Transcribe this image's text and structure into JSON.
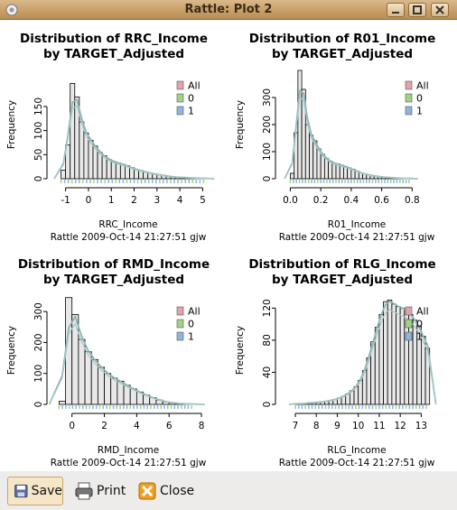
{
  "window": {
    "title": "Rattle: Plot 2"
  },
  "toolbar": {
    "save_label": "Save",
    "print_label": "Print",
    "close_label": "Close"
  },
  "colors": {
    "all": "#e6a0b0",
    "zero": "#9fd483",
    "one": "#8fb5dc",
    "bars": "#e8e8e8",
    "density": "#8fb5b5"
  },
  "chart_data": [
    {
      "type": "bar",
      "title": "Distribution of RRC_Income",
      "subtitle": "by TARGET_Adjusted",
      "xlabel": "RRC_Income",
      "ylabel": "Frequency",
      "caption": "Rattle 2009-Oct-14 21:27:51 gjw",
      "legend": [
        "All",
        "0",
        "1"
      ],
      "xlim": [
        -1.5,
        5.3
      ],
      "ylim": [
        0,
        225
      ],
      "xticks": [
        "-1",
        "0",
        "1",
        "2",
        "3",
        "4",
        "5"
      ],
      "yticks": [
        "0",
        "50",
        "100",
        "150"
      ],
      "bin_start": -1.2,
      "bin_width": 0.2,
      "values": [
        18,
        70,
        198,
        170,
        118,
        95,
        80,
        68,
        55,
        48,
        40,
        36,
        33,
        30,
        27,
        23,
        19,
        17,
        14,
        12,
        10,
        8,
        7,
        5,
        4,
        3,
        3,
        2,
        2,
        1,
        1,
        1
      ]
    },
    {
      "type": "bar",
      "title": "Distribution of R01_Income",
      "subtitle": "by TARGET_Adjusted",
      "xlabel": "R01_Income",
      "ylabel": "Frequency",
      "caption": "Rattle 2009-Oct-14 21:27:51 gjw",
      "legend": [
        "All",
        "0",
        "1"
      ],
      "xlim": [
        -0.05,
        0.97
      ],
      "ylim": [
        0,
        400
      ],
      "xticks": [
        "0.0",
        "0.2",
        "0.4",
        "0.6",
        "0.8"
      ],
      "yticks": [
        "0",
        "100",
        "200",
        "300"
      ],
      "bin_start": 0,
      "bin_width": 0.025,
      "values": [
        20,
        170,
        400,
        330,
        200,
        160,
        140,
        110,
        90,
        75,
        65,
        56,
        55,
        50,
        45,
        40,
        35,
        28,
        22,
        18,
        15,
        12,
        10,
        8,
        6,
        5,
        4,
        3,
        2,
        2,
        1,
        1
      ]
    },
    {
      "type": "bar",
      "title": "Distribution of RMD_Income",
      "subtitle": "by TARGET_Adjusted",
      "xlabel": "RMD_Income",
      "ylabel": "Frequency",
      "caption": "Rattle 2009-Oct-14 21:27:51 gjw",
      "legend": [
        "All",
        "0",
        "1"
      ],
      "xlim": [
        -1.1,
        8.5
      ],
      "ylim": [
        0,
        350
      ],
      "xticks": [
        "0",
        "2",
        "4",
        "6",
        "8"
      ],
      "yticks": [
        "0",
        "100",
        "200",
        "300"
      ],
      "bin_start": -0.8,
      "bin_width": 0.4,
      "values": [
        10,
        345,
        290,
        210,
        170,
        145,
        120,
        100,
        85,
        75,
        62,
        50,
        40,
        30,
        22,
        14,
        8,
        5,
        3,
        2,
        1
      ]
    },
    {
      "type": "bar",
      "title": "Distribution of RLG_Income",
      "subtitle": "by TARGET_Adjusted",
      "xlabel": "RLG_Income",
      "ylabel": "Frequency",
      "caption": "Rattle 2009-Oct-14 21:27:51 gjw",
      "legend": [
        "All",
        "0",
        "1"
      ],
      "xlim": [
        6.4,
        13.8
      ],
      "ylim": [
        0,
        135
      ],
      "xticks": [
        "7",
        "8",
        "9",
        "10",
        "11",
        "12",
        "13"
      ],
      "yticks": [
        "0",
        "40",
        "80",
        "120"
      ],
      "bin_start": 7,
      "bin_width": 0.2,
      "values": [
        1,
        1,
        1,
        2,
        2,
        3,
        3,
        4,
        5,
        6,
        8,
        10,
        13,
        17,
        22,
        30,
        42,
        58,
        78,
        96,
        112,
        128,
        130,
        125,
        122,
        120,
        118,
        112,
        105,
        98,
        85,
        70
      ]
    }
  ]
}
